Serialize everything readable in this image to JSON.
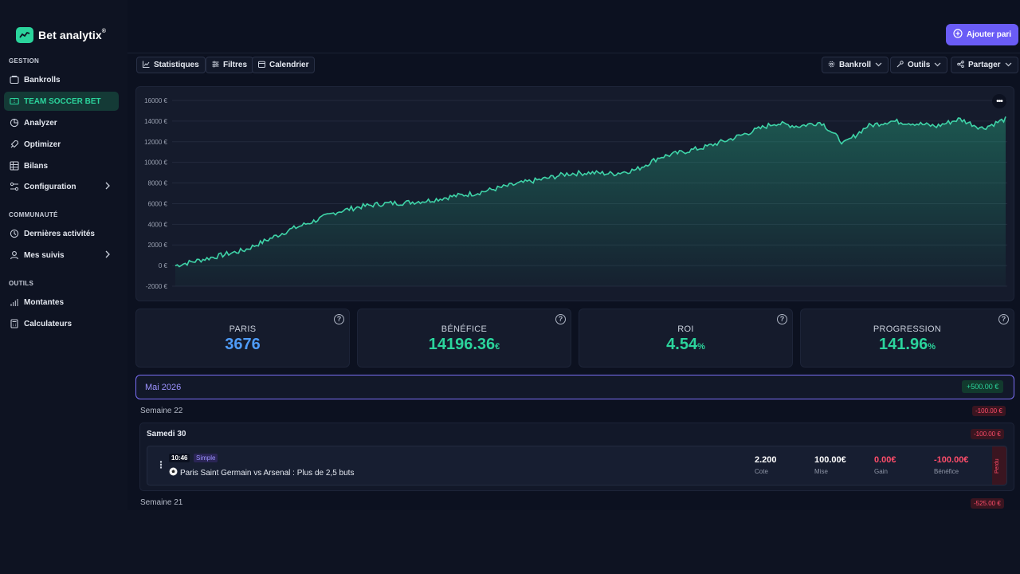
{
  "app": {
    "name": "Bet analytix",
    "mark": "®"
  },
  "sidebar": {
    "sections": [
      {
        "title": "GESTION"
      },
      {
        "title": "COMMUNAUTÉ"
      },
      {
        "title": "OUTILS"
      }
    ],
    "items": [
      {
        "label": "Bankrolls",
        "icon": "wallet-icon"
      },
      {
        "label": "TEAM SOCCER BET",
        "icon": "ticket-icon",
        "active": true
      },
      {
        "label": "Analyzer",
        "icon": "pie-chart-icon"
      },
      {
        "label": "Optimizer",
        "icon": "rocket-icon"
      },
      {
        "label": "Bilans",
        "icon": "table-icon"
      },
      {
        "label": "Configuration",
        "icon": "settings-icon"
      },
      {
        "label": "Dernières activités",
        "icon": "clock-icon"
      },
      {
        "label": "Mes suivis",
        "icon": "user-icon"
      },
      {
        "label": "Montantes",
        "icon": "bars-icon"
      },
      {
        "label": "Calculateurs",
        "icon": "calculator-icon"
      }
    ]
  },
  "header": {
    "add_label": "Ajouter pari"
  },
  "toolbar": {
    "left": [
      {
        "label": "Statistiques",
        "icon": "line-chart-icon"
      },
      {
        "label": "Filtres",
        "icon": "filter-icon"
      },
      {
        "label": "Calendrier",
        "icon": "calendar-icon"
      }
    ],
    "right": [
      {
        "label": "Bankroll",
        "icon": "gear-icon"
      },
      {
        "label": "Outils",
        "icon": "wrench-icon"
      },
      {
        "label": "Partager",
        "icon": "share-icon"
      }
    ]
  },
  "chart_data": {
    "type": "area",
    "title": "",
    "xlabel": "",
    "ylabel": "",
    "ylim": [
      -2000,
      16000
    ],
    "yticks": [
      "16000 €",
      "14000 €",
      "12000 €",
      "10000 €",
      "8000 €",
      "6000 €",
      "4000 €",
      "2000 €",
      "0 €",
      "-2000 €"
    ],
    "ytick_values": [
      16000,
      14000,
      12000,
      10000,
      8000,
      6000,
      4000,
      2000,
      0,
      -2000
    ],
    "grid": true,
    "color": "#3fd4a8",
    "series": [
      {
        "values": [
          0,
          500,
          1000,
          1500,
          2500,
          3500,
          4300,
          5200,
          5700,
          6000,
          6100,
          6300,
          6700,
          7000,
          7500,
          8000,
          8400,
          8900,
          9000,
          8900,
          9300,
          10500,
          11000,
          11500,
          12200,
          13000,
          13800,
          13500,
          13900,
          11800,
          13500,
          14000,
          13800,
          13500,
          14200,
          13300,
          14196
        ]
      }
    ]
  },
  "stats": [
    {
      "label": "PARIS",
      "value": "3676",
      "unit": "",
      "color": "#4f9cf9"
    },
    {
      "label": "BÉNÉFICE",
      "value": "14196.36",
      "unit": "€",
      "color": "#2bd49c"
    },
    {
      "label": "ROI",
      "value": "4.54",
      "unit": "%",
      "color": "#2bd49c"
    },
    {
      "label": "PROGRESSION",
      "value": "141.96",
      "unit": "%",
      "color": "#2bd49c"
    }
  ],
  "month": {
    "label": "Mai 2026",
    "total": "+500.00 €"
  },
  "weeks": [
    {
      "label": "Semaine 22",
      "total": "-100.00 €"
    },
    {
      "label": "Semaine 21",
      "total": "-525.00 €"
    }
  ],
  "day": {
    "label": "Samedi 30",
    "total": "-100.00 €"
  },
  "bet": {
    "time": "10:46",
    "type": "Simple",
    "title": "Paris Saint Germain vs Arsenal : Plus de 2,5 buts",
    "cote": "2.200",
    "cote_label": "Cote",
    "mise": "100.00€",
    "mise_label": "Mise",
    "gain": "0.00€",
    "gain_label": "Gain",
    "benefice": "-100.00€",
    "benefice_label": "Bénéfice",
    "status": "Perdu"
  }
}
